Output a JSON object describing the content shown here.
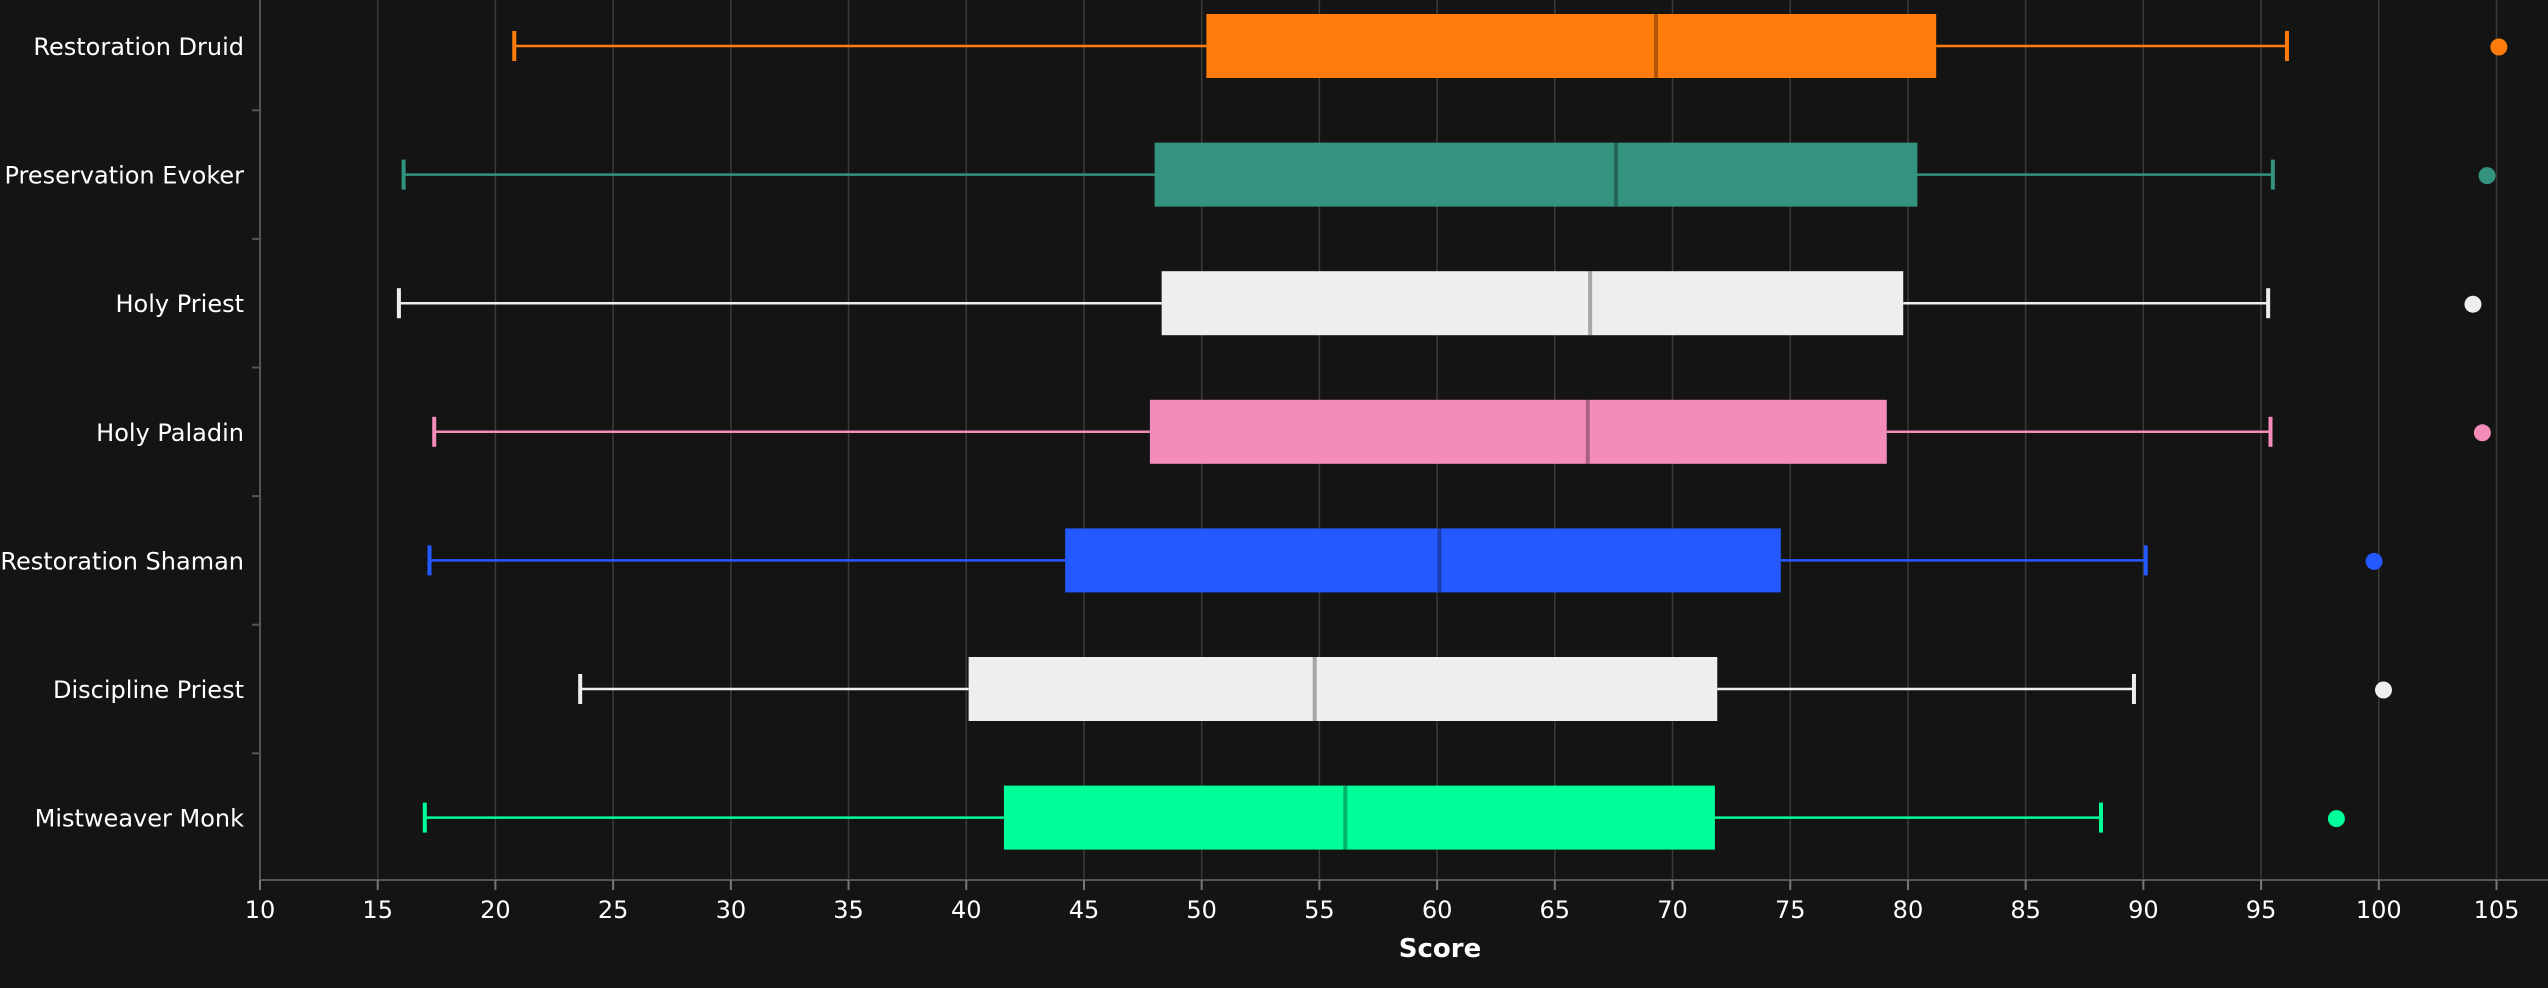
{
  "chart_data": {
    "type": "boxplot",
    "title": "",
    "xlabel": "Score",
    "ylabel": "",
    "xlim": [
      10,
      106
    ],
    "x_ticks": [
      10,
      15,
      20,
      25,
      30,
      35,
      40,
      45,
      50,
      55,
      60,
      65,
      70,
      75,
      80,
      85,
      90,
      95,
      100,
      105
    ],
    "grid": "vertical",
    "legend": "none",
    "background": "#141414",
    "series": [
      {
        "name": "Restoration Druid",
        "color": "#ff7c0a",
        "whisker_low": 20.8,
        "q1": 50.2,
        "median": 69.3,
        "q3": 81.2,
        "whisker_high": 96.1,
        "outlier": 105.1
      },
      {
        "name": "Preservation Evoker",
        "color": "#33937f",
        "whisker_low": 16.1,
        "q1": 48.0,
        "median": 67.6,
        "q3": 80.4,
        "whisker_high": 95.5,
        "outlier": 104.6
      },
      {
        "name": "Holy Priest",
        "color": "#eeeeee",
        "whisker_low": 15.9,
        "q1": 48.3,
        "median": 66.5,
        "q3": 79.8,
        "whisker_high": 95.3,
        "outlier": 104.0
      },
      {
        "name": "Holy Paladin",
        "color": "#f48cba",
        "whisker_low": 17.4,
        "q1": 47.8,
        "median": 66.4,
        "q3": 79.1,
        "whisker_high": 95.4,
        "outlier": 104.4
      },
      {
        "name": "Restoration Shaman",
        "color": "#2459ff",
        "whisker_low": 17.2,
        "q1": 44.2,
        "median": 60.1,
        "q3": 74.6,
        "whisker_high": 90.1,
        "outlier": 99.8
      },
      {
        "name": "Discipline Priest",
        "color": "#eeeeee",
        "whisker_low": 23.6,
        "q1": 40.1,
        "median": 54.8,
        "q3": 71.9,
        "whisker_high": 89.6,
        "outlier": 100.2
      },
      {
        "name": "Mistweaver Monk",
        "color": "#00ff98",
        "whisker_low": 17.0,
        "q1": 41.6,
        "median": 56.1,
        "q3": 71.8,
        "whisker_high": 88.2,
        "outlier": 98.2
      }
    ]
  }
}
